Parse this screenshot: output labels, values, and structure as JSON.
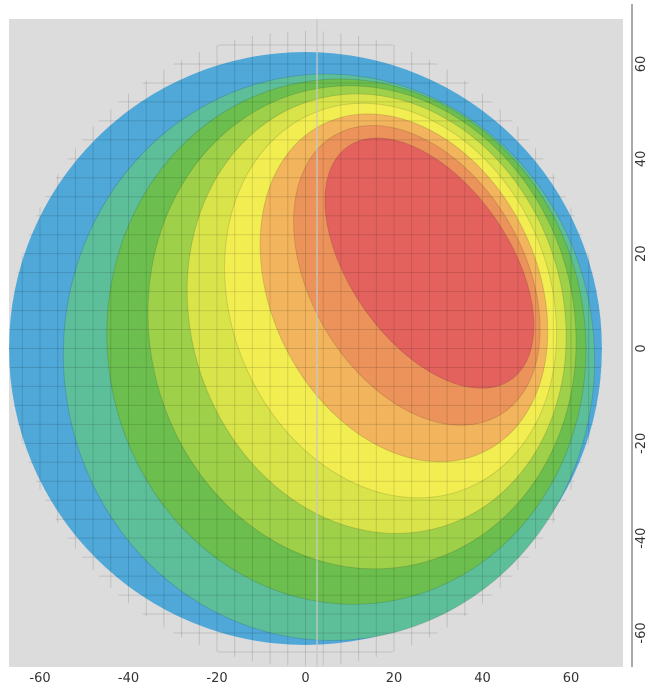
{
  "chart_data": {
    "type": "heatmap",
    "title": "",
    "xlabel": "",
    "ylabel": "",
    "xlim": [
      -66,
      74
    ],
    "ylim": [
      -68,
      70
    ],
    "x_ticks": [
      "-60",
      "-40",
      "-20",
      "0",
      "20",
      "40",
      "60"
    ],
    "y_ticks": [
      "-60",
      "-40",
      "-20",
      "0",
      "20",
      "40",
      "60"
    ],
    "y_axis_position": "right",
    "grid": true,
    "circle": {
      "center": [
        0,
        0
      ],
      "radius": 67
    },
    "contour_levels": [
      {
        "level": 1,
        "color": "#4fa8d8"
      },
      {
        "level": 2,
        "color": "#5dbf9a"
      },
      {
        "level": 3,
        "color": "#6cbf4e"
      },
      {
        "level": 4,
        "color": "#9fd04a"
      },
      {
        "level": 5,
        "color": "#d8e44a"
      },
      {
        "level": 6,
        "color": "#f2ee52"
      },
      {
        "level": 7,
        "color": "#f2b45c"
      },
      {
        "level": 8,
        "color": "#eb935a"
      },
      {
        "level": 9,
        "color": "#e4625e"
      }
    ],
    "hotspot_center": [
      28,
      18
    ],
    "hotspot_level": 9,
    "edge_level": 2,
    "background_color": "#dcdcdc"
  }
}
